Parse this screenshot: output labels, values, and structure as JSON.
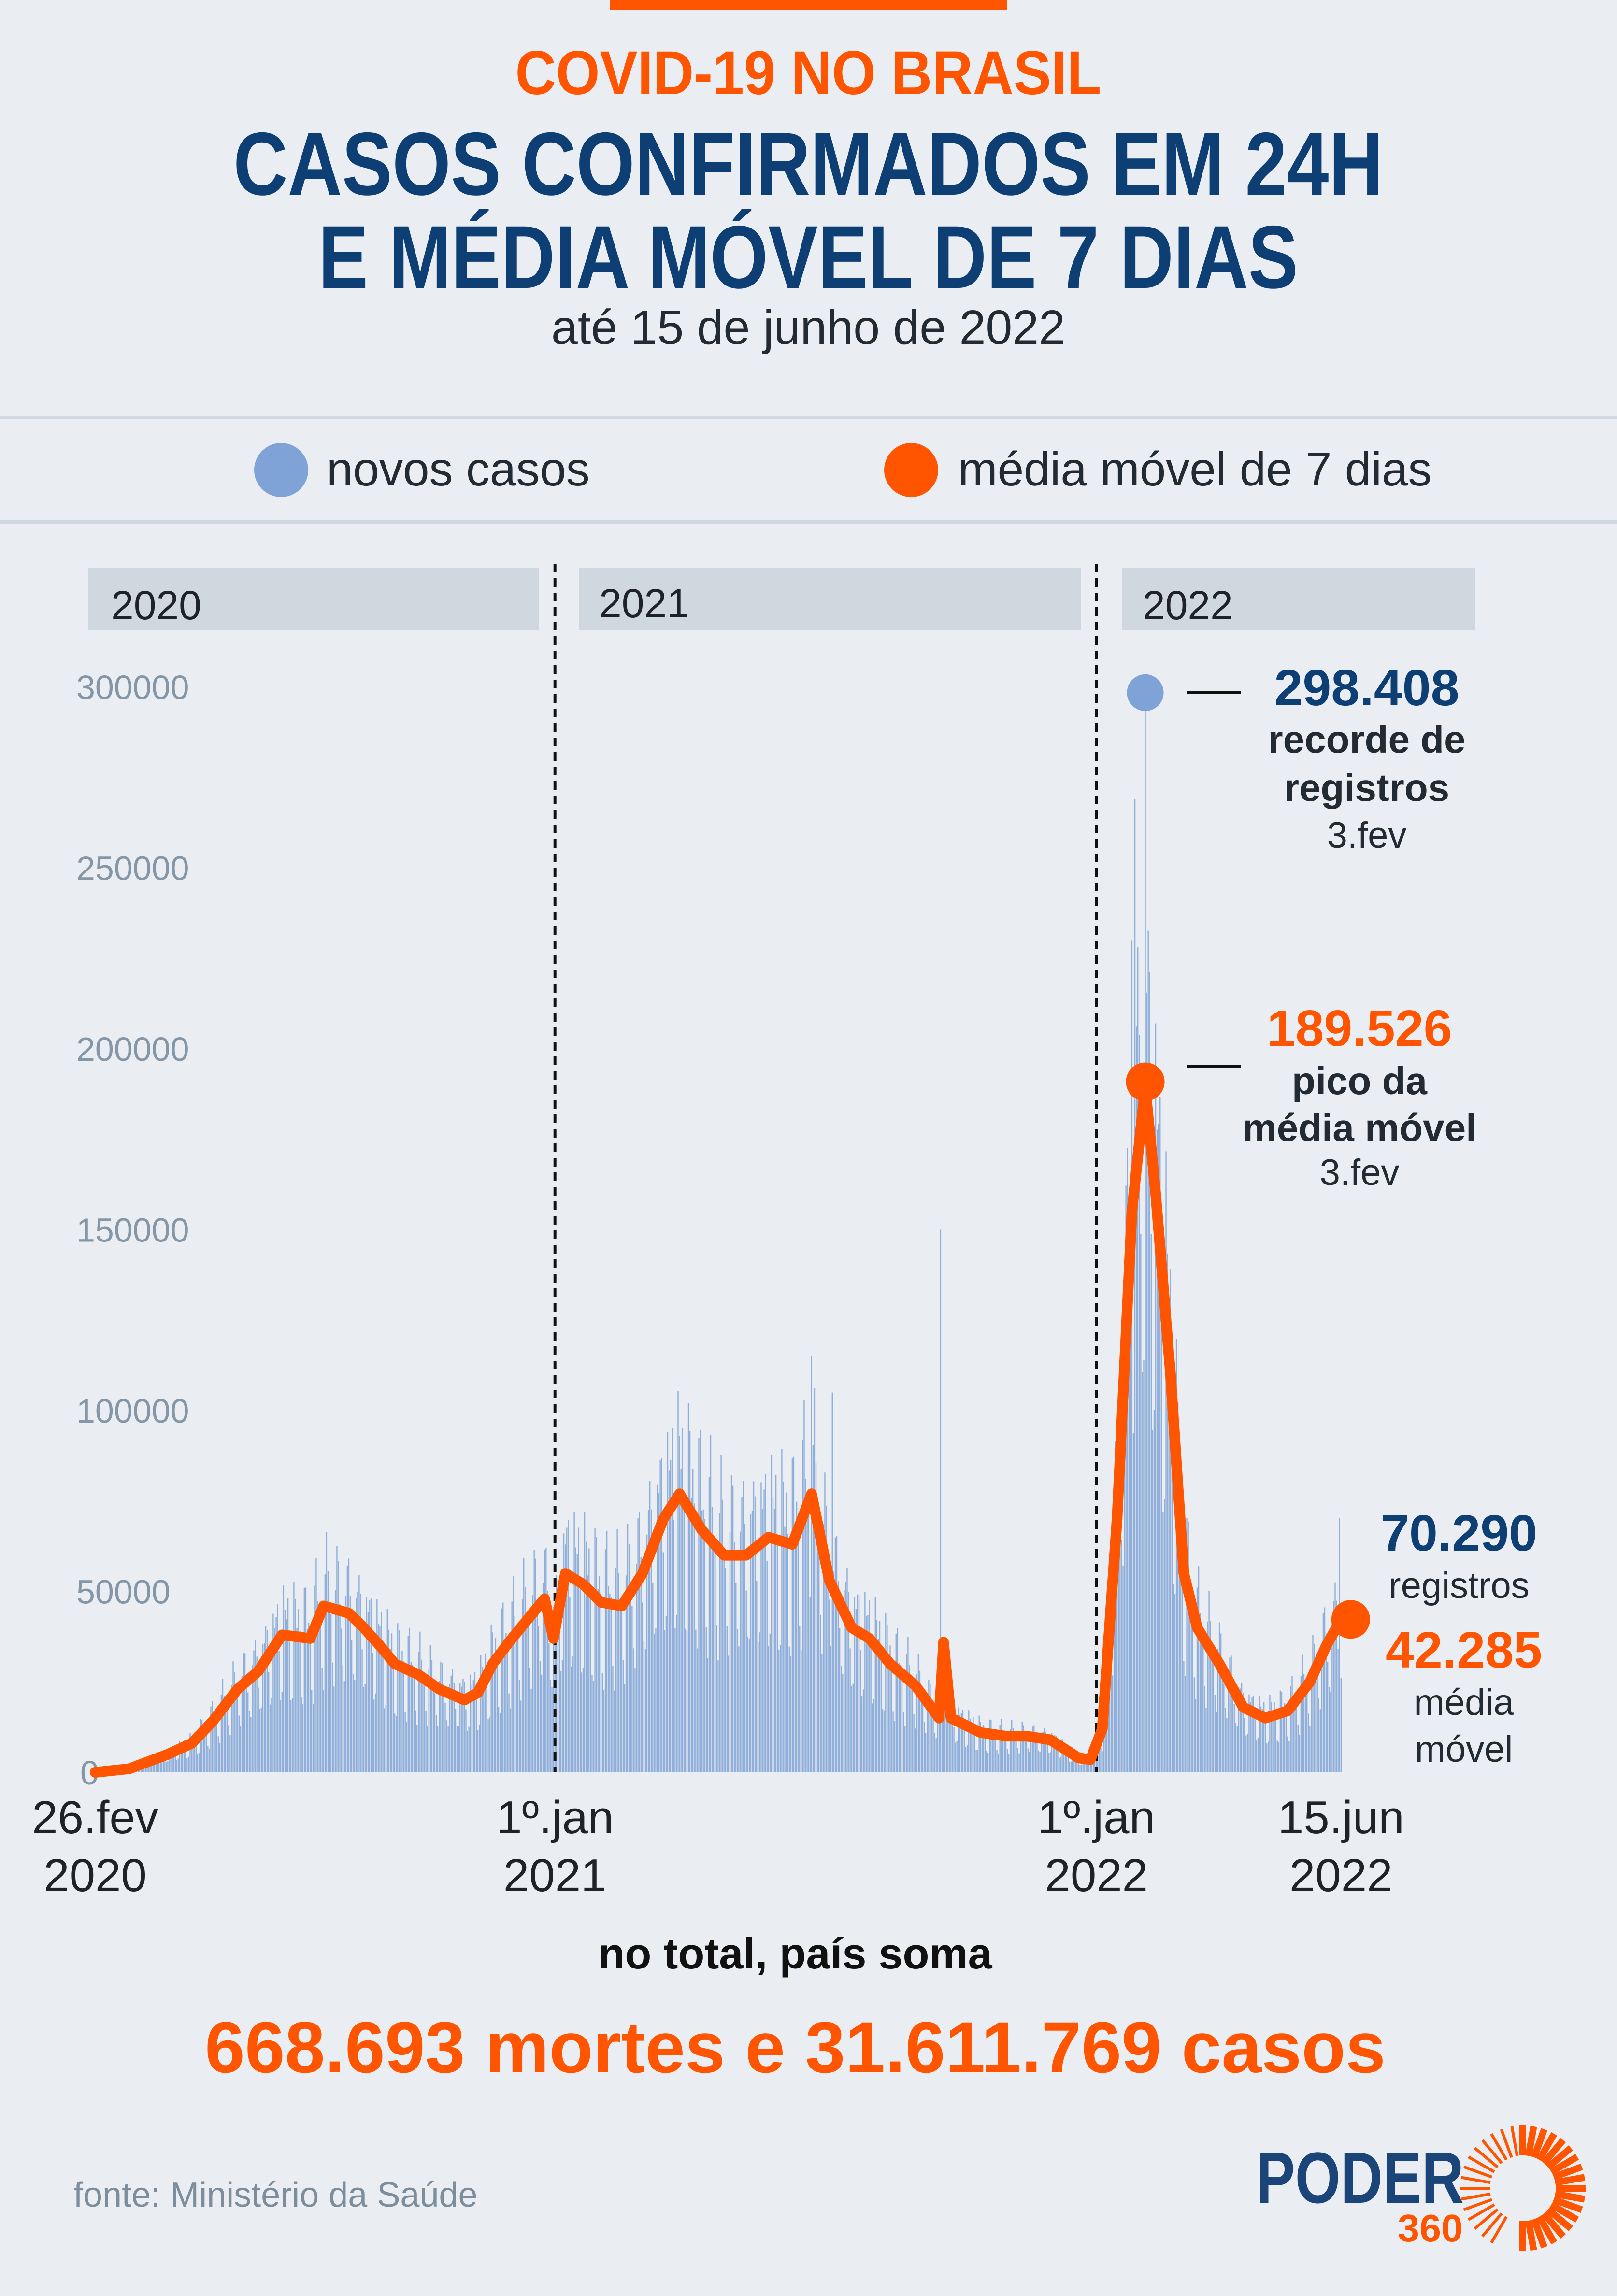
{
  "header": {
    "kicker": "COVID-19 NO BRASIL",
    "title_line1": "CASOS CONFIRMADOS EM 24H",
    "title_line2": "E MÉDIA MÓVEL DE 7 DIAS",
    "subtitle": "até 15 de junho de 2022"
  },
  "legend": {
    "cases_label": "novos casos",
    "ma_label": "média móvel de 7 dias"
  },
  "colors": {
    "cases": "#7fa3d6",
    "moving_average": "#ff5500",
    "navy": "#0d3f74",
    "background": "#eaeef2"
  },
  "chart_data": {
    "type": "bar+line",
    "title": "Casos confirmados em 24h e média móvel de 7 dias",
    "ylim": [
      0,
      300000
    ],
    "yticks": [
      "0",
      "50000",
      "100000",
      "150000",
      "200000",
      "250000",
      "300000"
    ],
    "ytick_values": [
      0,
      50000,
      100000,
      150000,
      200000,
      250000,
      300000
    ],
    "start_date": "2020-02-26",
    "end_date": "2022-06-15",
    "year_bands": [
      "2020",
      "2021",
      "2022"
    ],
    "xticks": [
      {
        "date": "2020-02-26",
        "line1": "26.fev",
        "line2": "2020"
      },
      {
        "date": "2021-01-01",
        "line1": "1º.jan",
        "line2": "2021"
      },
      {
        "date": "2022-01-01",
        "line1": "1º.jan",
        "line2": "2022"
      },
      {
        "date": "2022-06-15",
        "line1": "15.jun",
        "line2": "2022"
      }
    ],
    "moving_average": [
      [
        "2020-02-26",
        0
      ],
      [
        "2020-03-20",
        1000
      ],
      [
        "2020-04-15",
        5000
      ],
      [
        "2020-05-01",
        8000
      ],
      [
        "2020-05-15",
        14000
      ],
      [
        "2020-06-01",
        23000
      ],
      [
        "2020-06-15",
        28000
      ],
      [
        "2020-07-01",
        38000
      ],
      [
        "2020-07-20",
        37000
      ],
      [
        "2020-07-29",
        46000
      ],
      [
        "2020-08-15",
        44000
      ],
      [
        "2020-08-25",
        40000
      ],
      [
        "2020-09-05",
        35000
      ],
      [
        "2020-09-15",
        30000
      ],
      [
        "2020-10-01",
        27000
      ],
      [
        "2020-10-15",
        23000
      ],
      [
        "2020-11-01",
        20000
      ],
      [
        "2020-11-10",
        22000
      ],
      [
        "2020-11-20",
        30000
      ],
      [
        "2020-12-01",
        36000
      ],
      [
        "2020-12-15",
        43000
      ],
      [
        "2020-12-25",
        48000
      ],
      [
        "2020-12-31",
        37000
      ],
      [
        "2021-01-08",
        55000
      ],
      [
        "2021-01-20",
        52000
      ],
      [
        "2021-02-01",
        47000
      ],
      [
        "2021-02-15",
        46000
      ],
      [
        "2021-03-01",
        55000
      ],
      [
        "2021-03-15",
        70000
      ],
      [
        "2021-03-26",
        77000
      ],
      [
        "2021-04-10",
        67000
      ],
      [
        "2021-04-25",
        60000
      ],
      [
        "2021-05-10",
        60000
      ],
      [
        "2021-05-25",
        65000
      ],
      [
        "2021-06-10",
        63000
      ],
      [
        "2021-06-23",
        77000
      ],
      [
        "2021-07-05",
        53000
      ],
      [
        "2021-07-20",
        40000
      ],
      [
        "2021-08-01",
        37000
      ],
      [
        "2021-08-15",
        30000
      ],
      [
        "2021-09-01",
        24000
      ],
      [
        "2021-09-17",
        15000
      ],
      [
        "2021-09-20",
        36000
      ],
      [
        "2021-09-25",
        15000
      ],
      [
        "2021-10-15",
        11000
      ],
      [
        "2021-11-01",
        10000
      ],
      [
        "2021-11-15",
        10000
      ],
      [
        "2021-12-01",
        9000
      ],
      [
        "2021-12-20",
        4000
      ],
      [
        "2021-12-28",
        3500
      ],
      [
        "2022-01-05",
        12000
      ],
      [
        "2022-01-15",
        70000
      ],
      [
        "2022-01-25",
        155000
      ],
      [
        "2022-02-03",
        189526
      ],
      [
        "2022-02-10",
        160000
      ],
      [
        "2022-02-20",
        110000
      ],
      [
        "2022-03-01",
        55000
      ],
      [
        "2022-03-10",
        40000
      ],
      [
        "2022-03-25",
        30000
      ],
      [
        "2022-04-10",
        18000
      ],
      [
        "2022-04-25",
        15000
      ],
      [
        "2022-05-10",
        17000
      ],
      [
        "2022-05-25",
        25000
      ],
      [
        "2022-06-05",
        35000
      ],
      [
        "2022-06-15",
        42285
      ]
    ],
    "case_spikes": [
      [
        "2021-09-18",
        150000
      ],
      [
        "2021-06-23",
        115000
      ],
      [
        "2021-07-07",
        105000
      ],
      [
        "2022-01-25",
        230000
      ],
      [
        "2022-01-27",
        269000
      ],
      [
        "2022-02-03",
        298408
      ],
      [
        "2022-06-14",
        70290
      ]
    ],
    "annotations": {
      "record": {
        "value": "298.408",
        "line1": "recorde de",
        "line2": "registros",
        "date": "3.fev"
      },
      "peak_ma": {
        "value": "189.526",
        "line1": "pico da",
        "line2": "média móvel",
        "date": "3.fev"
      },
      "latest": {
        "cases_value": "70.290",
        "cases_label": "registros",
        "ma_value": "42.285",
        "ma_line1": "média",
        "ma_line2": "móvel"
      }
    }
  },
  "totals": {
    "intro": "no total, país soma",
    "summary": "668.693 mortes e 31.611.769 casos"
  },
  "footer": {
    "source": "fonte: Ministério da Saúde",
    "logo_word": "PODER",
    "logo_number": "360"
  }
}
